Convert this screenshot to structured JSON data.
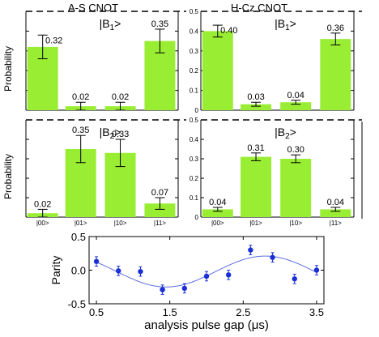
{
  "figure": {
    "left_title": "A-S CNOT",
    "right_title": "H-Cz CNOT",
    "ylabel": "Probability"
  },
  "chart_data": [
    {
      "id": "as_b1",
      "type": "bar",
      "state_label": "|B1>",
      "categories": [
        "|00>",
        "|01>",
        "|10>",
        "|11>"
      ],
      "values": [
        0.32,
        0.02,
        0.02,
        0.35
      ],
      "errors": [
        0.06,
        0.02,
        0.02,
        0.06
      ],
      "value_labels": [
        "0.32",
        "0.02",
        "0.02",
        "0.35"
      ],
      "show_category_labels": false,
      "show_ytick_labels": false,
      "ylim": [
        0,
        0.5
      ],
      "ylabel": "Probability",
      "bar_color": "#99ee33"
    },
    {
      "id": "hcz_b1",
      "type": "bar",
      "state_label": "|B1>",
      "categories": [
        "|00>",
        "|01>",
        "|10>",
        "|11>"
      ],
      "values": [
        0.4,
        0.03,
        0.04,
        0.36
      ],
      "errors": [
        0.03,
        0.01,
        0.01,
        0.03
      ],
      "value_labels": [
        "0.40",
        "0.03",
        "0.04",
        "0.36"
      ],
      "show_category_labels": false,
      "show_ytick_labels": true,
      "yticks": [
        "0",
        "0.1",
        "0.2",
        "0.3",
        "0.4",
        "0.5"
      ],
      "ylim": [
        0,
        0.5
      ],
      "bar_color": "#99ee33"
    },
    {
      "id": "as_b2",
      "type": "bar",
      "state_label": "|B2>",
      "categories": [
        "|00>",
        "|01>",
        "|10>",
        "|11>"
      ],
      "values": [
        0.02,
        0.35,
        0.33,
        0.07
      ],
      "errors": [
        0.02,
        0.07,
        0.07,
        0.03
      ],
      "value_labels": [
        "0.02",
        "0.35",
        "0.33",
        "0.07"
      ],
      "show_category_labels": true,
      "show_ytick_labels": false,
      "ylim": [
        0,
        0.5
      ],
      "ylabel": "Probability",
      "bar_color": "#99ee33"
    },
    {
      "id": "hcz_b2",
      "type": "bar",
      "state_label": "|B2>",
      "categories": [
        "|00>",
        "|01>",
        "|10>",
        "|11>"
      ],
      "values": [
        0.04,
        0.31,
        0.3,
        0.04
      ],
      "errors": [
        0.01,
        0.02,
        0.02,
        0.01
      ],
      "value_labels": [
        "0.04",
        "0.31",
        "0.30",
        "0.04"
      ],
      "show_category_labels": true,
      "show_ytick_labels": true,
      "yticks": [
        "0",
        "0.1",
        "0.2",
        "0.3",
        "0.4",
        "0.5"
      ],
      "ylim": [
        0,
        0.5
      ],
      "bar_color": "#99ee33"
    },
    {
      "id": "parity",
      "type": "scatter",
      "xlabel": "analysis pulse gap (μs)",
      "ylabel": "Parity",
      "xlim": [
        0.4,
        3.6
      ],
      "ylim": [
        -0.5,
        0.5
      ],
      "xticks": [
        "0.5",
        "1.5",
        "2.5",
        "3.5"
      ],
      "yticks": [
        "-0.5",
        "0.0",
        "0.5"
      ],
      "points": {
        "x": [
          0.5,
          0.8,
          1.1,
          1.4,
          1.7,
          2.0,
          2.3,
          2.6,
          2.9,
          3.2,
          3.5
        ],
        "y": [
          0.13,
          -0.01,
          -0.02,
          -0.29,
          -0.27,
          -0.09,
          -0.07,
          0.3,
          0.19,
          -0.13,
          0.0
        ],
        "err": [
          0.07,
          0.07,
          0.07,
          0.07,
          0.07,
          0.07,
          0.07,
          0.07,
          0.07,
          0.07,
          0.07
        ]
      },
      "fit": {
        "offset": -0.02,
        "amplitude": 0.23,
        "period": 2.7,
        "phase_x": 1.45
      },
      "point_color": "#1a2fd6",
      "fit_color": "#5a6ee0"
    }
  ]
}
